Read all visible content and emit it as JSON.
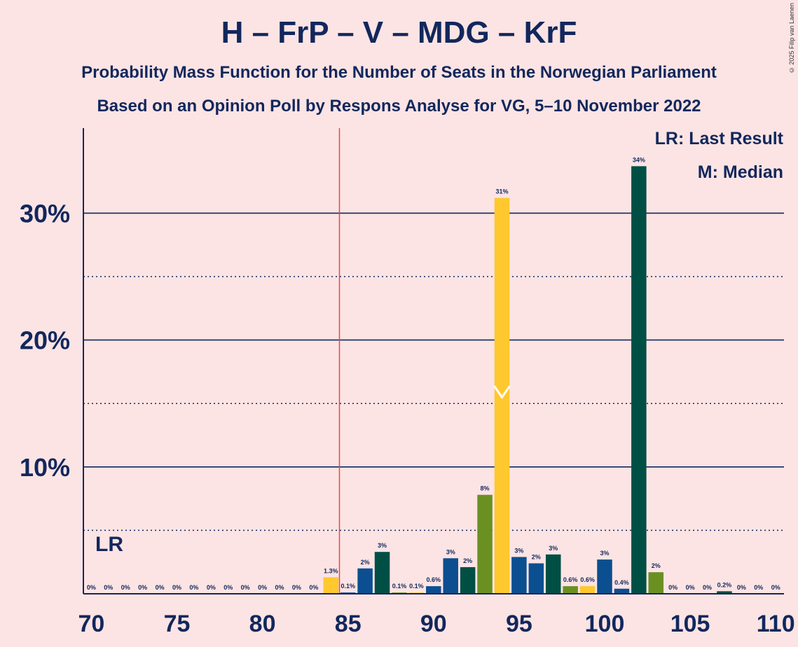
{
  "title": "H – FrP – V – MDG – KrF",
  "subtitle1": "Probability Mass Function for the Number of Seats in the Norwegian Parliament",
  "subtitle2": "Based on an Opinion Poll by Respons Analyse for VG, 5–10 November 2022",
  "copyright": "© 2025 Filip van Laenen",
  "legend": {
    "lr": "LR: Last Result",
    "m": "M: Median"
  },
  "colors": {
    "background": "#fce4e4",
    "text": "#12275c",
    "lr_line": "#e8483e",
    "H": "#0b4f91",
    "FrP": "#004f45",
    "V": "#6a9022",
    "MDG": "#ffc82e"
  },
  "chart_data": {
    "type": "bar",
    "x": [
      70,
      71,
      72,
      73,
      74,
      75,
      76,
      77,
      78,
      79,
      80,
      81,
      82,
      83,
      84,
      85,
      86,
      87,
      88,
      89,
      90,
      91,
      92,
      93,
      94,
      95,
      96,
      97,
      98,
      99,
      100,
      101,
      102,
      103,
      104,
      105,
      106,
      107,
      108,
      109,
      110
    ],
    "values": [
      0,
      0,
      0,
      0,
      0,
      0,
      0,
      0,
      0,
      0,
      0,
      0,
      0,
      0,
      1.3,
      0.1,
      2,
      3.3,
      0.1,
      0.1,
      0.6,
      2.8,
      2.1,
      7.8,
      31.2,
      2.9,
      2.4,
      3.1,
      0.6,
      0.6,
      2.7,
      0.4,
      33.7,
      1.7,
      0,
      0,
      0,
      0.2,
      0,
      0,
      0
    ],
    "labels": [
      "0%",
      "0%",
      "0%",
      "0%",
      "0%",
      "0%",
      "0%",
      "0%",
      "0%",
      "0%",
      "0%",
      "0%",
      "0%",
      "0%",
      "1.3%",
      "0.1%",
      "2%",
      "3%",
      "0.1%",
      "0.1%",
      "0.6%",
      "3%",
      "2%",
      "8%",
      "31%",
      "3%",
      "2%",
      "3%",
      "0.6%",
      "0.6%",
      "3%",
      "0.4%",
      "34%",
      "2%",
      "0%",
      "0%",
      "0%",
      "0.2%",
      "0%",
      "0%",
      "0%"
    ],
    "bar_colors": [
      "MDG",
      "H",
      "FrP",
      "V",
      "MDG",
      "H",
      "FrP",
      "V",
      "MDG",
      "H",
      "FrP",
      "V",
      "MDG",
      "H",
      "MDG",
      "H",
      "H",
      "FrP",
      "V",
      "MDG",
      "H",
      "H",
      "FrP",
      "V",
      "MDG",
      "H",
      "H",
      "FrP",
      "V",
      "MDG",
      "H",
      "H",
      "FrP",
      "V",
      "MDG",
      "H",
      "FrP",
      "FrP",
      "V",
      "MDG",
      "H"
    ],
    "x_ticks": [
      70,
      75,
      80,
      85,
      90,
      95,
      100,
      105,
      110
    ],
    "x_tick_labels": [
      "70",
      "75",
      "80",
      "85",
      "90",
      "95",
      "100",
      "105",
      "110"
    ],
    "y_ticks_major": [
      10,
      20,
      30
    ],
    "y_tick_labels": [
      "10%",
      "20%",
      "30%"
    ],
    "y_ticks_minor": [
      5,
      15,
      25
    ],
    "ylim": [
      0,
      36.7
    ],
    "xlim": [
      69.5,
      110.5
    ],
    "last_result": 84.5,
    "last_result_label": "LR",
    "median": 94,
    "median_label": "M"
  }
}
